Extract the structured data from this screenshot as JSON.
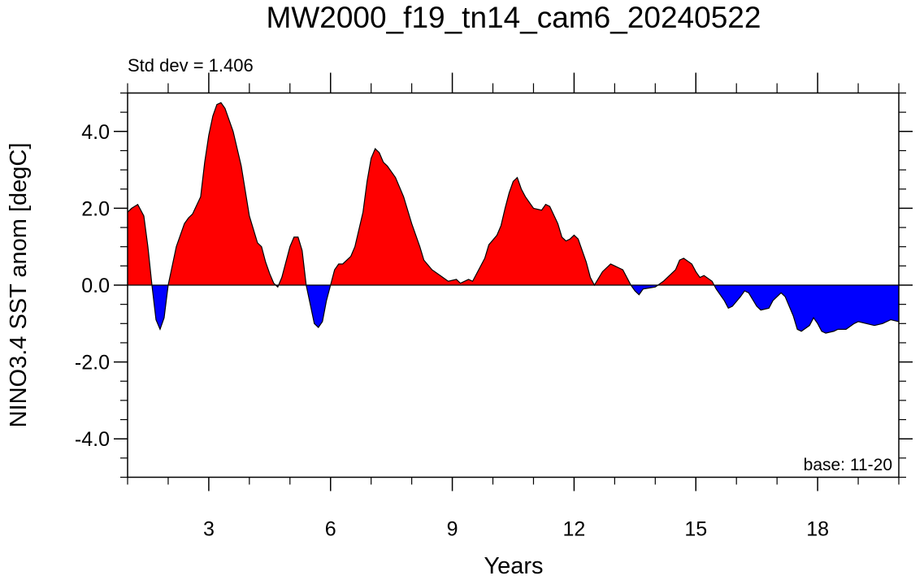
{
  "chart_data": {
    "type": "area",
    "title": "MW2000_f19_tn14_cam6_20240522",
    "annotations": {
      "std_dev": "Std dev = 1.406",
      "base": "base: 11-20"
    },
    "x_label": "Years",
    "y_label": "NINO3.4 SST anom [degC]",
    "xlim": [
      1,
      20
    ],
    "ylim": [
      -5,
      5
    ],
    "xticks": [
      3,
      6,
      9,
      12,
      15,
      18
    ],
    "xminorticks": [
      1,
      2,
      4,
      5,
      7,
      8,
      10,
      11,
      13,
      14,
      16,
      17,
      19,
      20
    ],
    "yticks": [
      {
        "value": -4,
        "label": "-4.0"
      },
      {
        "value": -2,
        "label": "-2.0"
      },
      {
        "value": 0,
        "label": "0.0"
      },
      {
        "value": 2,
        "label": "2.0"
      },
      {
        "value": 4,
        "label": "4.0"
      }
    ],
    "yminorticks": [
      -5,
      -4.5,
      -3.5,
      -3,
      -2.5,
      -1.5,
      -1,
      -0.5,
      0.5,
      1,
      1.5,
      2.5,
      3,
      3.5,
      4.5,
      5
    ],
    "above_color": "#ff0000",
    "below_color": "#0000ff",
    "x": [
      1.0,
      1.1,
      1.25,
      1.4,
      1.5,
      1.6,
      1.7,
      1.8,
      1.9,
      2.0,
      2.1,
      2.2,
      2.4,
      2.5,
      2.6,
      2.8,
      2.9,
      3.0,
      3.1,
      3.2,
      3.3,
      3.4,
      3.6,
      3.8,
      4.0,
      4.2,
      4.3,
      4.4,
      4.5,
      4.6,
      4.7,
      4.8,
      4.9,
      5.0,
      5.1,
      5.2,
      5.3,
      5.4,
      5.5,
      5.6,
      5.7,
      5.8,
      5.9,
      6.0,
      6.1,
      6.2,
      6.3,
      6.5,
      6.6,
      6.8,
      6.9,
      7.0,
      7.1,
      7.2,
      7.3,
      7.4,
      7.6,
      7.8,
      8.0,
      8.2,
      8.3,
      8.5,
      8.7,
      8.9,
      9.1,
      9.2,
      9.4,
      9.5,
      9.7,
      9.8,
      9.9,
      10.1,
      10.2,
      10.3,
      10.4,
      10.5,
      10.6,
      10.7,
      10.8,
      11.0,
      11.2,
      11.3,
      11.4,
      11.6,
      11.7,
      11.8,
      11.9,
      12.0,
      12.1,
      12.3,
      12.4,
      12.5,
      12.7,
      12.9,
      13.0,
      13.2,
      13.4,
      13.5,
      13.6,
      13.7,
      14.0,
      14.2,
      14.4,
      14.5,
      14.6,
      14.7,
      14.9,
      15.0,
      15.1,
      15.2,
      15.4,
      15.5,
      15.7,
      15.8,
      15.9,
      16.1,
      16.2,
      16.3,
      16.5,
      16.6,
      16.8,
      16.9,
      17.1,
      17.2,
      17.4,
      17.5,
      17.6,
      17.8,
      17.9,
      18.0,
      18.1,
      18.2,
      18.4,
      18.5,
      18.7,
      18.9,
      19.0,
      19.2,
      19.4,
      19.6,
      19.8,
      20.0
    ],
    "values": [
      1.9,
      2.0,
      2.1,
      1.8,
      1.0,
      0.0,
      -0.9,
      -1.15,
      -0.85,
      0.0,
      0.5,
      1.0,
      1.6,
      1.75,
      1.85,
      2.3,
      3.2,
      3.9,
      4.4,
      4.7,
      4.75,
      4.6,
      4.0,
      3.1,
      1.8,
      1.1,
      1.0,
      0.6,
      0.3,
      0.05,
      -0.05,
      0.2,
      0.6,
      1.0,
      1.25,
      1.25,
      0.9,
      0.0,
      -0.5,
      -1.0,
      -1.1,
      -0.95,
      -0.4,
      0.0,
      0.4,
      0.55,
      0.55,
      0.75,
      1.0,
      1.9,
      2.7,
      3.3,
      3.55,
      3.45,
      3.2,
      3.1,
      2.8,
      2.3,
      1.6,
      1.0,
      0.65,
      0.4,
      0.25,
      0.1,
      0.15,
      0.05,
      0.15,
      0.1,
      0.5,
      0.7,
      1.05,
      1.3,
      1.55,
      2.0,
      2.4,
      2.7,
      2.8,
      2.5,
      2.3,
      2.0,
      1.95,
      2.1,
      2.05,
      1.6,
      1.25,
      1.15,
      1.2,
      1.3,
      1.2,
      0.6,
      0.2,
      0.0,
      0.35,
      0.55,
      0.5,
      0.4,
      0.0,
      -0.15,
      -0.25,
      -0.1,
      -0.05,
      0.1,
      0.3,
      0.4,
      0.65,
      0.7,
      0.55,
      0.35,
      0.2,
      0.25,
      0.1,
      -0.1,
      -0.4,
      -0.6,
      -0.55,
      -0.3,
      -0.15,
      -0.2,
      -0.55,
      -0.65,
      -0.6,
      -0.4,
      -0.2,
      -0.3,
      -0.8,
      -1.15,
      -1.2,
      -1.05,
      -0.85,
      -1.0,
      -1.2,
      -1.25,
      -1.2,
      -1.15,
      -1.15,
      -1.0,
      -0.95,
      -1.0,
      -1.05,
      -1.0,
      -0.9,
      -0.95
    ]
  }
}
